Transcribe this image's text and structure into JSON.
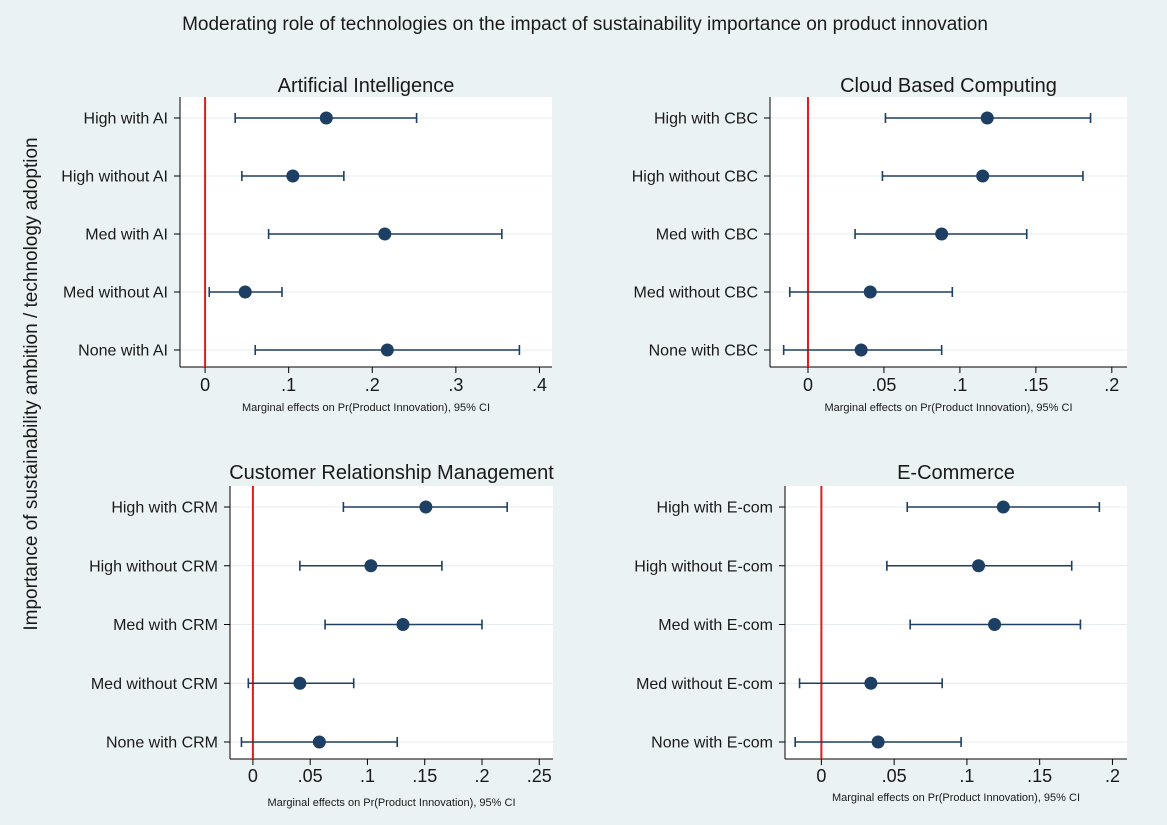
{
  "figure": {
    "title": "Moderating role of technologies on the impact of sustainability importance on product innovation",
    "ylabel": "Importance of sustainability ambition / technology adoption"
  },
  "colors": {
    "background": "#eaf2f3",
    "plot_area": "#ffffff",
    "marker": "#1c3f63",
    "reference_line": "#e31a1c",
    "grid": "#e6ecef"
  },
  "chart_data": [
    {
      "type": "scatter",
      "title": "Artificial Intelligence",
      "xlabel": "Marginal effects on Pr(Product Innovation), 95% CI",
      "xlim": [
        -0.03,
        0.415
      ],
      "xticks": [
        0,
        0.1,
        0.2,
        0.3,
        0.4
      ],
      "xtick_labels": [
        "0",
        ".1",
        ".2",
        ".3",
        ".4"
      ],
      "reference_line": 0,
      "categories": [
        "High with AI",
        "High without AI",
        "Med with AI",
        "Med without AI",
        "None with AI"
      ],
      "estimates": [
        0.145,
        0.105,
        0.215,
        0.048,
        0.218
      ],
      "ci_low": [
        0.036,
        0.044,
        0.076,
        0.005,
        0.06
      ],
      "ci_high": [
        0.253,
        0.166,
        0.355,
        0.092,
        0.376
      ]
    },
    {
      "type": "scatter",
      "title": "Cloud Based Computing",
      "xlabel": "Marginal effects on Pr(Product Innovation), 95% CI",
      "xlim": [
        -0.025,
        0.21
      ],
      "xticks": [
        0,
        0.05,
        0.1,
        0.15,
        0.2
      ],
      "xtick_labels": [
        "0",
        ".05",
        ".1",
        ".15",
        ".2"
      ],
      "reference_line": 0,
      "categories": [
        "High with CBC",
        "High without CBC",
        "Med with CBC",
        "Med without CBC",
        "None with CBC"
      ],
      "estimates": [
        0.118,
        0.115,
        0.088,
        0.041,
        0.035
      ],
      "ci_low": [
        0.051,
        0.049,
        0.031,
        -0.012,
        -0.016
      ],
      "ci_high": [
        0.186,
        0.181,
        0.144,
        0.095,
        0.088
      ]
    },
    {
      "type": "scatter",
      "title": "Customer Relationship Management",
      "xlabel": "Marginal effects on Pr(Product Innovation), 95% CI",
      "xlim": [
        -0.02,
        0.262
      ],
      "xticks": [
        0,
        0.05,
        0.1,
        0.15,
        0.2,
        0.25
      ],
      "xtick_labels": [
        "0",
        ".05",
        ".1",
        ".15",
        ".2",
        ".25"
      ],
      "reference_line": 0,
      "categories": [
        "High with CRM",
        "High without CRM",
        "Med with CRM",
        "Med without CRM",
        "None with CRM"
      ],
      "estimates": [
        0.151,
        0.103,
        0.131,
        0.041,
        0.058
      ],
      "ci_low": [
        0.079,
        0.041,
        0.063,
        -0.004,
        -0.01
      ],
      "ci_high": [
        0.222,
        0.165,
        0.2,
        0.088,
        0.126
      ]
    },
    {
      "type": "scatter",
      "title": "E-Commerce",
      "xlabel": "Marginal effects on Pr(Product Innovation), 95% CI",
      "xlim": [
        -0.025,
        0.21
      ],
      "xticks": [
        0,
        0.05,
        0.1,
        0.15,
        0.2
      ],
      "xtick_labels": [
        "0",
        ".05",
        ".1",
        ".15",
        ".2"
      ],
      "reference_line": 0,
      "categories": [
        "High with E-com",
        "High without E-com",
        "Med with E-com",
        "Med without E-com",
        "None with E-com"
      ],
      "estimates": [
        0.125,
        0.108,
        0.119,
        0.034,
        0.039
      ],
      "ci_low": [
        0.059,
        0.045,
        0.061,
        -0.015,
        -0.018
      ],
      "ci_high": [
        0.191,
        0.172,
        0.178,
        0.083,
        0.096
      ]
    }
  ]
}
